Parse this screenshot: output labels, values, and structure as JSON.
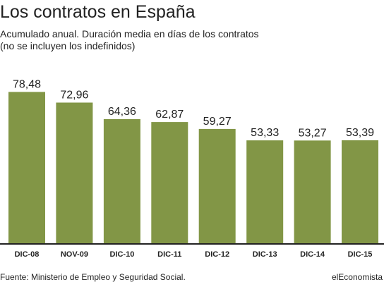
{
  "chart_data": {
    "type": "bar",
    "title": "Los contratos en España",
    "subtitle": "Acumulado anual. Duración media en días de los contratos",
    "note": "(no se incluyen los indefinidos)",
    "categories": [
      "DIC-08",
      "NOV-09",
      "DIC-10",
      "DIC-11",
      "DIC-12",
      "DIC-13",
      "DIC-14",
      "DIC-15"
    ],
    "values": [
      78.48,
      72.96,
      64.36,
      62.87,
      59.27,
      53.33,
      53.27,
      53.39
    ],
    "value_labels": [
      "78,48",
      "72,96",
      "64,36",
      "62,87",
      "59,27",
      "53,33",
      "53,27",
      "53,39"
    ],
    "ylim": [
      0,
      83
    ],
    "grid": false,
    "bar_color": "#829646",
    "axis_color": "#222222"
  },
  "footer": {
    "source": "Fuente: Ministerio de Empleo y Seguridad Social.",
    "brand": "elEconomista"
  }
}
